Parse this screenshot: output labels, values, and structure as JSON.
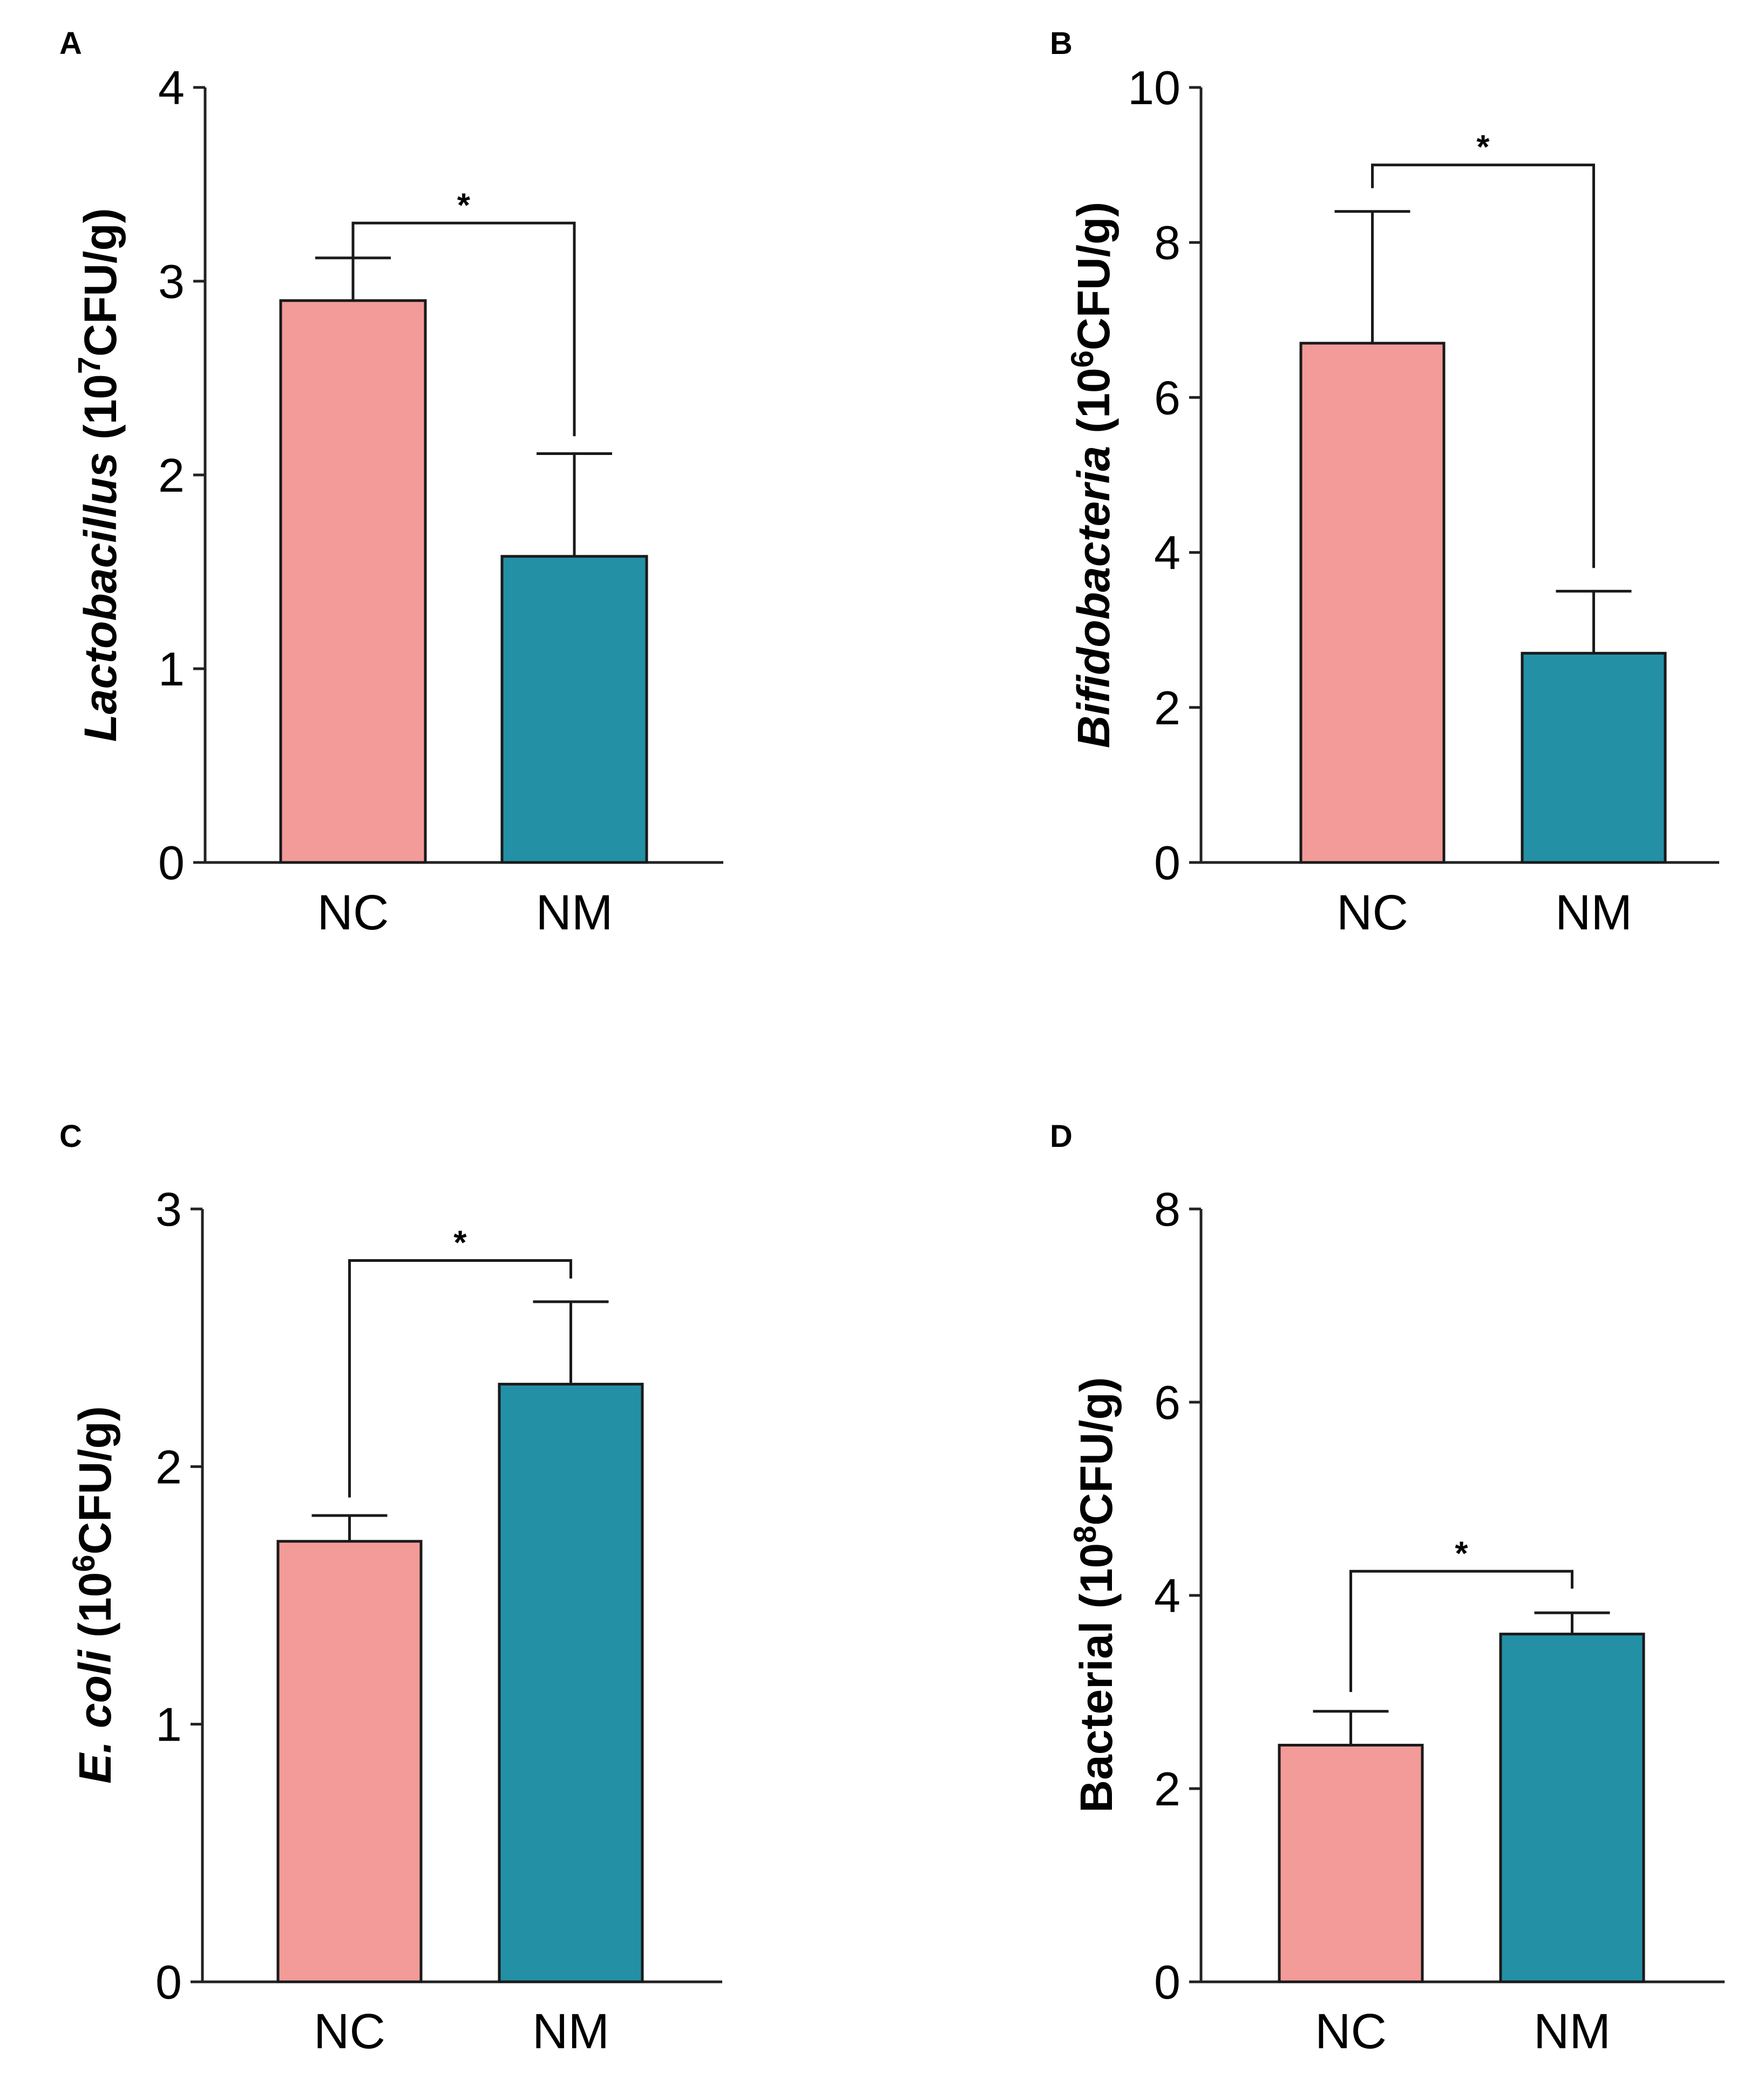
{
  "chart_data": [
    {
      "panel": "A",
      "type": "bar",
      "categories": [
        "NC",
        "NM"
      ],
      "values": [
        2.9,
        1.58
      ],
      "errors": [
        0.22,
        0.53
      ],
      "colors": [
        "#f29b99",
        "#2390a6"
      ],
      "ylabel_italic": "Lactobacillus",
      "ylabel_rest": " (10",
      "ylabel_sup": "7",
      "ylabel_tail": "CFU/g)",
      "ylim": [
        0,
        4
      ],
      "yticks": [
        "0",
        "1",
        "2",
        "3",
        "4"
      ],
      "significance": {
        "label": "*",
        "bracket_level": 3.3,
        "left_start": 3.12,
        "right_end": 2.2
      }
    },
    {
      "panel": "B",
      "type": "bar",
      "categories": [
        "NC",
        "NM"
      ],
      "values": [
        6.7,
        2.7
      ],
      "errors": [
        1.7,
        0.8
      ],
      "colors": [
        "#f29b99",
        "#2390a6"
      ],
      "ylabel_italic": "Bifidobacteria",
      "ylabel_rest": " (10",
      "ylabel_sup": "6",
      "ylabel_tail": "CFU/g)",
      "ylim": [
        0,
        10
      ],
      "yticks": [
        "0",
        "2",
        "4",
        "6",
        "8",
        "10"
      ],
      "significance": {
        "label": "*",
        "bracket_level": 9.0,
        "left_start": 8.7,
        "right_end": 3.8
      }
    },
    {
      "panel": "C",
      "type": "bar",
      "categories": [
        "NC",
        "NM"
      ],
      "values": [
        1.71,
        2.32
      ],
      "errors": [
        0.1,
        0.32
      ],
      "colors": [
        "#f29b99",
        "#2390a6"
      ],
      "ylabel_italic": "E. coli",
      "ylabel_rest": " (10",
      "ylabel_sup": "6",
      "ylabel_tail": "CFU/g)",
      "ylim": [
        0,
        3
      ],
      "yticks": [
        "0",
        "1",
        "2",
        "3"
      ],
      "significance": {
        "label": "*",
        "bracket_level": 2.8,
        "left_start": 1.88,
        "right_end": 2.73
      }
    },
    {
      "panel": "D",
      "type": "bar",
      "categories": [
        "NC",
        "NM"
      ],
      "values": [
        2.45,
        3.6
      ],
      "errors": [
        0.35,
        0.22
      ],
      "colors": [
        "#f29b99",
        "#2390a6"
      ],
      "ylabel_italic": "",
      "ylabel_rest": "Bacterial (10",
      "ylabel_sup": "8",
      "ylabel_tail": "CFU/g)",
      "ylim": [
        0,
        8
      ],
      "yticks": [
        "0",
        "2",
        "4",
        "6",
        "8"
      ],
      "significance": {
        "label": "*",
        "bracket_level": 4.25,
        "left_start": 3.0,
        "right_end": 4.07
      }
    }
  ]
}
